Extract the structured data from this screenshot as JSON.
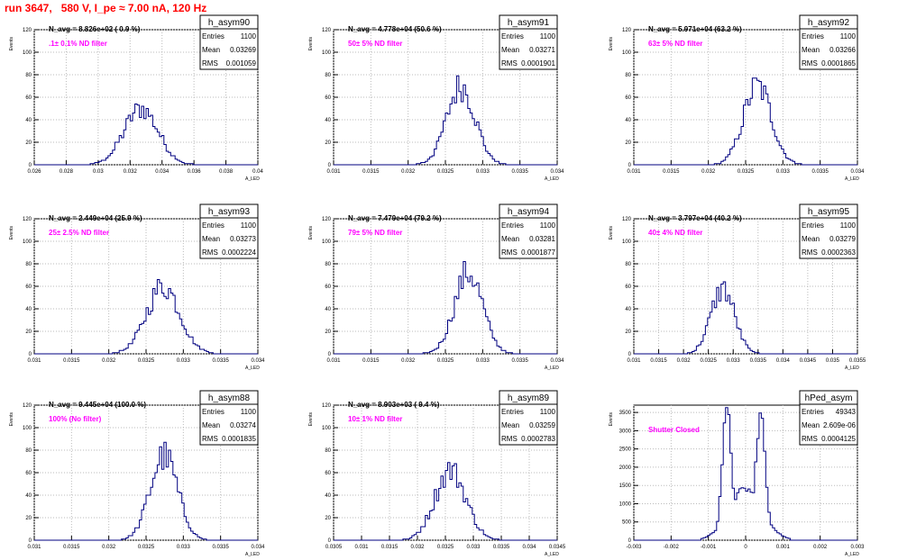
{
  "run_title": "run 3647,   580 V, I_pe ≈ 7.00 nA, 120 Hz",
  "y_axis_label": "Events",
  "x_axis_label": "A_LED",
  "stats_labels": [
    "Entries",
    "Mean",
    "RMS"
  ],
  "chart_data": [
    {
      "type": "bar",
      "title": "h_asym90",
      "navg": "N_avg = 8.826e+02 ( 0.9 %)",
      "filter": ".1± 0.1% ND filter",
      "stats": {
        "entries": "1100",
        "mean": "0.03269",
        "rms": "0.001059"
      },
      "xlim": [
        0.026,
        0.04
      ],
      "xticks": [
        "0.026",
        "0.028",
        "0.03",
        "0.032",
        "0.034",
        "0.036",
        "0.038",
        "0.04"
      ],
      "ylim": [
        0,
        120
      ],
      "yticks": [
        "0",
        "20",
        "40",
        "60",
        "80",
        "100",
        "120"
      ],
      "mu": 0.03269,
      "sigma": 0.00106,
      "height": 50
    },
    {
      "type": "bar",
      "title": "h_asym91",
      "navg": "N_avg = 4.778e+04 (50.6 %)",
      "filter": "50± 5% ND filter",
      "stats": {
        "entries": "1100",
        "mean": "0.03271",
        "rms": "0.0001901"
      },
      "xlim": [
        0.031,
        0.034
      ],
      "xticks": [
        "0.031",
        "0.0315",
        "0.032",
        "0.0325",
        "0.033",
        "0.0335",
        "0.034"
      ],
      "ylim": [
        0,
        120
      ],
      "yticks": [
        "0",
        "20",
        "40",
        "60",
        "80",
        "100",
        "120"
      ],
      "mu": 0.03271,
      "sigma": 0.00019,
      "height": 70
    },
    {
      "type": "bar",
      "title": "h_asym92",
      "navg": "N_avg = 5.971e+04 (63.2 %)",
      "filter": "63± 5% ND filter",
      "stats": {
        "entries": "1100",
        "mean": "0.03266",
        "rms": "0.0001865"
      },
      "xlim": [
        0.031,
        0.034
      ],
      "xticks": [
        "0.031",
        "0.0315",
        "0.032",
        "0.0325",
        "0.033",
        "0.0335",
        "0.034"
      ],
      "ylim": [
        0,
        120
      ],
      "yticks": [
        "0",
        "20",
        "40",
        "60",
        "80",
        "100",
        "120"
      ],
      "mu": 0.03266,
      "sigma": 0.000187,
      "height": 70
    },
    {
      "type": "bar",
      "title": "h_asym93",
      "navg": "N_avg = 2.449e+04 (25.9 %)",
      "filter": "25± 2.5% ND filter",
      "stats": {
        "entries": "1100",
        "mean": "0.03273",
        "rms": "0.0002224"
      },
      "xlim": [
        0.031,
        0.034
      ],
      "xticks": [
        "0.031",
        "0.0315",
        "0.032",
        "0.0325",
        "0.033",
        "0.0335",
        "0.034"
      ],
      "ylim": [
        0,
        120
      ],
      "yticks": [
        "0",
        "20",
        "40",
        "60",
        "80",
        "100",
        "120"
      ],
      "mu": 0.03273,
      "sigma": 0.000222,
      "height": 60
    },
    {
      "type": "bar",
      "title": "h_asym94",
      "navg": "N_avg = 7.479e+04 (79.2 %)",
      "filter": "79± 5% ND filter",
      "stats": {
        "entries": "1100",
        "mean": "0.03281",
        "rms": "0.0001877"
      },
      "xlim": [
        0.031,
        0.034
      ],
      "xticks": [
        "0.031",
        "0.0315",
        "0.032",
        "0.0325",
        "0.033",
        "0.0335",
        "0.034"
      ],
      "ylim": [
        0,
        120
      ],
      "yticks": [
        "0",
        "20",
        "40",
        "60",
        "80",
        "100",
        "120"
      ],
      "mu": 0.03281,
      "sigma": 0.000188,
      "height": 72
    },
    {
      "type": "bar",
      "title": "h_asym95",
      "navg": "N_avg = 3.797e+04 (40.2 %)",
      "filter": "40± 4% ND filter",
      "stats": {
        "entries": "1100",
        "mean": "0.03279",
        "rms": "0.0002363"
      },
      "xlim": [
        0.031,
        0.0355
      ],
      "xticks": [
        "0.031",
        "0.0315",
        "0.032",
        "0.0325",
        "0.033",
        "0.0335",
        "0.034",
        "0.0345",
        "0.035",
        "0.0355"
      ],
      "ylim": [
        0,
        120
      ],
      "yticks": [
        "0",
        "20",
        "40",
        "60",
        "80",
        "100",
        "120"
      ],
      "mu": 0.03279,
      "sigma": 0.000236,
      "height": 58
    },
    {
      "type": "bar",
      "title": "h_asym88",
      "navg": "N_avg = 9.445e+04 (100.0 %)",
      "filter": "100% (No filter)",
      "stats": {
        "entries": "1100",
        "mean": "0.03274",
        "rms": "0.0001835"
      },
      "xlim": [
        0.031,
        0.034
      ],
      "xticks": [
        "0.031",
        "0.0315",
        "0.032",
        "0.0325",
        "0.033",
        "0.0335",
        "0.034"
      ],
      "ylim": [
        0,
        120
      ],
      "yticks": [
        "0",
        "20",
        "40",
        "60",
        "80",
        "100",
        "120"
      ],
      "mu": 0.03274,
      "sigma": 0.000184,
      "height": 75
    },
    {
      "type": "bar",
      "title": "h_asym89",
      "navg": "N_avg = 8.903e+03 ( 9.4 %)",
      "filter": "10± 1% ND filter",
      "stats": {
        "entries": "1100",
        "mean": "0.03259",
        "rms": "0.0002783"
      },
      "xlim": [
        0.0305,
        0.0345
      ],
      "xticks": [
        "0.0305",
        "0.031",
        "0.0315",
        "0.032",
        "0.0325",
        "0.033",
        "0.0335",
        "0.034",
        "0.0345"
      ],
      "ylim": [
        0,
        120
      ],
      "yticks": [
        "0",
        "20",
        "40",
        "60",
        "80",
        "100",
        "120"
      ],
      "mu": 0.03259,
      "sigma": 0.000278,
      "height": 62
    },
    {
      "type": "bar",
      "title": "hPed_asym",
      "navg": "",
      "filter": "Shutter Closed",
      "stats": {
        "entries": "49343",
        "mean": "2.609e-06",
        "rms": "0.0004125"
      },
      "xlim": [
        -0.003,
        0.003
      ],
      "xticks": [
        "-0.003",
        "-0.002",
        "-0.001",
        "0",
        "0.001",
        "0.002",
        "0.003"
      ],
      "ylim": [
        0,
        3700
      ],
      "yticks": [
        "0",
        "500",
        "1000",
        "1500",
        "2000",
        "2500",
        "3000",
        "3500"
      ],
      "bimodal": true
    }
  ]
}
